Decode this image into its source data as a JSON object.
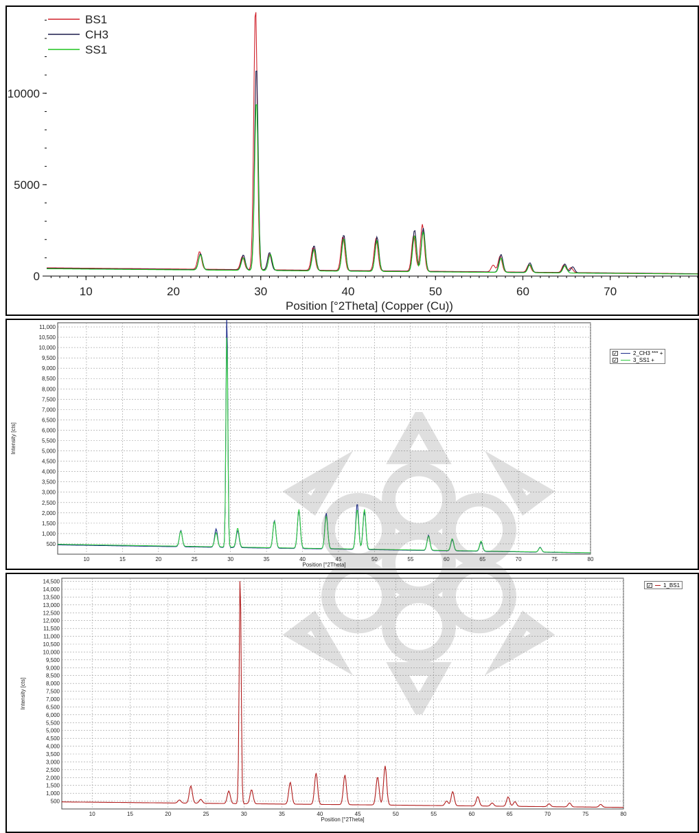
{
  "chart_data": [
    {
      "type": "line",
      "xlabel": "Position [°2Theta] (Copper (Cu))",
      "ylabel": "",
      "xlim": [
        5.5,
        80
      ],
      "ylim": [
        0,
        14500
      ],
      "xticks": [
        10,
        20,
        30,
        40,
        50,
        60,
        70
      ],
      "yticks": [
        0,
        5000,
        10000
      ],
      "ytick_labels": [
        "0",
        "5000",
        "10000"
      ],
      "grid": false,
      "legend": {
        "placement": "top-left",
        "entries": [
          "BS1",
          "CH3",
          "SS1"
        ]
      },
      "series": [
        {
          "name": "BS1",
          "color": "#d0202a",
          "baseline_start": 450,
          "baseline_end": 130,
          "peaks": [
            [
              23.0,
              1100
            ],
            [
              27.9,
              850
            ],
            [
              29.4,
              14600
            ],
            [
              31.0,
              1000
            ],
            [
              36.0,
              1400
            ],
            [
              39.4,
              2000
            ],
            [
              43.2,
              1900
            ],
            [
              47.5,
              2100
            ],
            [
              48.5,
              2700
            ],
            [
              56.6,
              500
            ],
            [
              57.4,
              1000
            ],
            [
              60.7,
              550
            ],
            [
              64.7,
              550
            ],
            [
              65.5,
              400
            ]
          ]
        },
        {
          "name": "CH3",
          "color": "#1a1a4a",
          "baseline_start": 420,
          "baseline_end": 120,
          "peaks": [
            [
              23.1,
              1000
            ],
            [
              28.0,
              950
            ],
            [
              29.5,
              11400
            ],
            [
              31.0,
              1100
            ],
            [
              36.1,
              1500
            ],
            [
              39.5,
              2100
            ],
            [
              43.3,
              2000
            ],
            [
              47.6,
              2400
            ],
            [
              48.6,
              2500
            ],
            [
              57.5,
              1100
            ],
            [
              60.8,
              650
            ],
            [
              64.8,
              600
            ],
            [
              65.7,
              450
            ]
          ]
        },
        {
          "name": "SS1",
          "color": "#1ec41e",
          "baseline_start": 400,
          "baseline_end": 110,
          "peaks": [
            [
              23.1,
              950
            ],
            [
              28.0,
              800
            ],
            [
              29.5,
              9500
            ],
            [
              31.1,
              1000
            ],
            [
              36.1,
              1300
            ],
            [
              39.5,
              1900
            ],
            [
              43.3,
              1800
            ],
            [
              47.6,
              2100
            ],
            [
              48.6,
              2300
            ],
            [
              57.5,
              900
            ],
            [
              60.8,
              550
            ],
            [
              64.8,
              500
            ]
          ]
        }
      ]
    },
    {
      "type": "line",
      "xlabel": "Position [°2Theta]",
      "ylabel": "Intensity [cts]",
      "xlim": [
        6,
        80
      ],
      "ylim": [
        0,
        11200
      ],
      "xticks": [
        10,
        15,
        20,
        25,
        30,
        35,
        40,
        45,
        50,
        55,
        60,
        65,
        70,
        75,
        80
      ],
      "yticks": [
        500,
        1000,
        1500,
        2000,
        2500,
        3000,
        3500,
        4000,
        4500,
        5000,
        5500,
        6000,
        6500,
        7000,
        7500,
        8000,
        8500,
        9000,
        9500,
        10000,
        10500,
        11000
      ],
      "ytick_labels": [
        "500",
        "1,000",
        "1,500",
        "2,000",
        "2,500",
        "3,000",
        "3,500",
        "4,000",
        "4,500",
        "5,000",
        "5,500",
        "6,000",
        "6,500",
        "7,000",
        "7,500",
        "8,000",
        "8,500",
        "9,000",
        "9,500",
        "10,000",
        "10,500",
        "11,000"
      ],
      "grid": true,
      "legend": {
        "placement": "right",
        "entries": [
          "2_CH3 *** +",
          "3_SS1 +"
        ]
      },
      "series": [
        {
          "name": "2_CH3 *** +",
          "color": "#1a2a8a",
          "baseline_start": 450,
          "baseline_end": 60,
          "peaks": [
            [
              23.1,
              850
            ],
            [
              28.0,
              950
            ],
            [
              29.5,
              11500
            ],
            [
              31.0,
              900
            ],
            [
              36.1,
              1400
            ],
            [
              39.5,
              1900
            ],
            [
              43.3,
              1800
            ],
            [
              47.6,
              2300
            ],
            [
              48.6,
              1900
            ],
            [
              57.5,
              800
            ],
            [
              60.8,
              600
            ],
            [
              64.8,
              500
            ],
            [
              73.0,
              300
            ]
          ]
        },
        {
          "name": "3_SS1 +",
          "color": "#2ecc40",
          "baseline_start": 480,
          "baseline_end": 70,
          "peaks": [
            [
              23.1,
              800
            ],
            [
              28.0,
              750
            ],
            [
              29.5,
              10500
            ],
            [
              31.0,
              1000
            ],
            [
              36.1,
              1350
            ],
            [
              39.5,
              1950
            ],
            [
              43.3,
              1650
            ],
            [
              47.6,
              2000
            ],
            [
              48.6,
              2000
            ],
            [
              57.5,
              750
            ],
            [
              60.8,
              650
            ],
            [
              64.8,
              550
            ],
            [
              73.0,
              280
            ]
          ]
        }
      ]
    },
    {
      "type": "line",
      "xlabel": "Position [°2Theta]",
      "ylabel": "Intensity [cts]",
      "xlim": [
        6,
        80
      ],
      "ylim": [
        0,
        14700
      ],
      "xticks": [
        10,
        15,
        20,
        25,
        30,
        35,
        40,
        45,
        50,
        55,
        60,
        65,
        70,
        75,
        80
      ],
      "yticks": [
        500,
        1000,
        1500,
        2000,
        2500,
        3000,
        3500,
        4000,
        4500,
        5000,
        5500,
        6000,
        6500,
        7000,
        7500,
        8000,
        8500,
        9000,
        9500,
        10000,
        10500,
        11000,
        11500,
        12000,
        12500,
        13000,
        13500,
        14000,
        14500
      ],
      "ytick_labels": [
        "500",
        "1,000",
        "1,500",
        "2,000",
        "2,500",
        "3,000",
        "3,500",
        "4,000",
        "4,500",
        "5,000",
        "5,500",
        "6,000",
        "6,500",
        "7,000",
        "7,500",
        "8,000",
        "8,500",
        "9,000",
        "9,500",
        "10,000",
        "10,500",
        "11,000",
        "11,500",
        "12,000",
        "12,500",
        "13,000",
        "13,500",
        "14,000",
        "14,500"
      ],
      "grid": true,
      "legend": {
        "placement": "right",
        "entries": [
          "1_BS1"
        ]
      },
      "series": [
        {
          "name": "1_BS1",
          "color": "#b01a1a",
          "baseline_start": 450,
          "baseline_end": 100,
          "peaks": [
            [
              21.5,
              300
            ],
            [
              23.0,
              1200
            ],
            [
              24.3,
              350
            ],
            [
              28.0,
              900
            ],
            [
              29.5,
              14700
            ],
            [
              31.0,
              1000
            ],
            [
              36.1,
              1500
            ],
            [
              39.5,
              2100
            ],
            [
              43.3,
              2000
            ],
            [
              47.6,
              1900
            ],
            [
              48.6,
              2600
            ],
            [
              56.7,
              400
            ],
            [
              57.5,
              1000
            ],
            [
              60.8,
              700
            ],
            [
              62.7,
              300
            ],
            [
              64.8,
              700
            ],
            [
              65.7,
              400
            ],
            [
              70.2,
              280
            ],
            [
              72.9,
              350
            ],
            [
              77.0,
              280
            ]
          ]
        }
      ]
    }
  ],
  "panels": {
    "p1": {
      "x_label": "Position [°2Theta] (Copper (Cu))"
    },
    "p2": {
      "x_label": "Position [°2Theta]",
      "y_label": "Intensity [cts]"
    },
    "p3": {
      "x_label": "Position [°2Theta]",
      "y_label": "Intensity [cts]"
    }
  }
}
